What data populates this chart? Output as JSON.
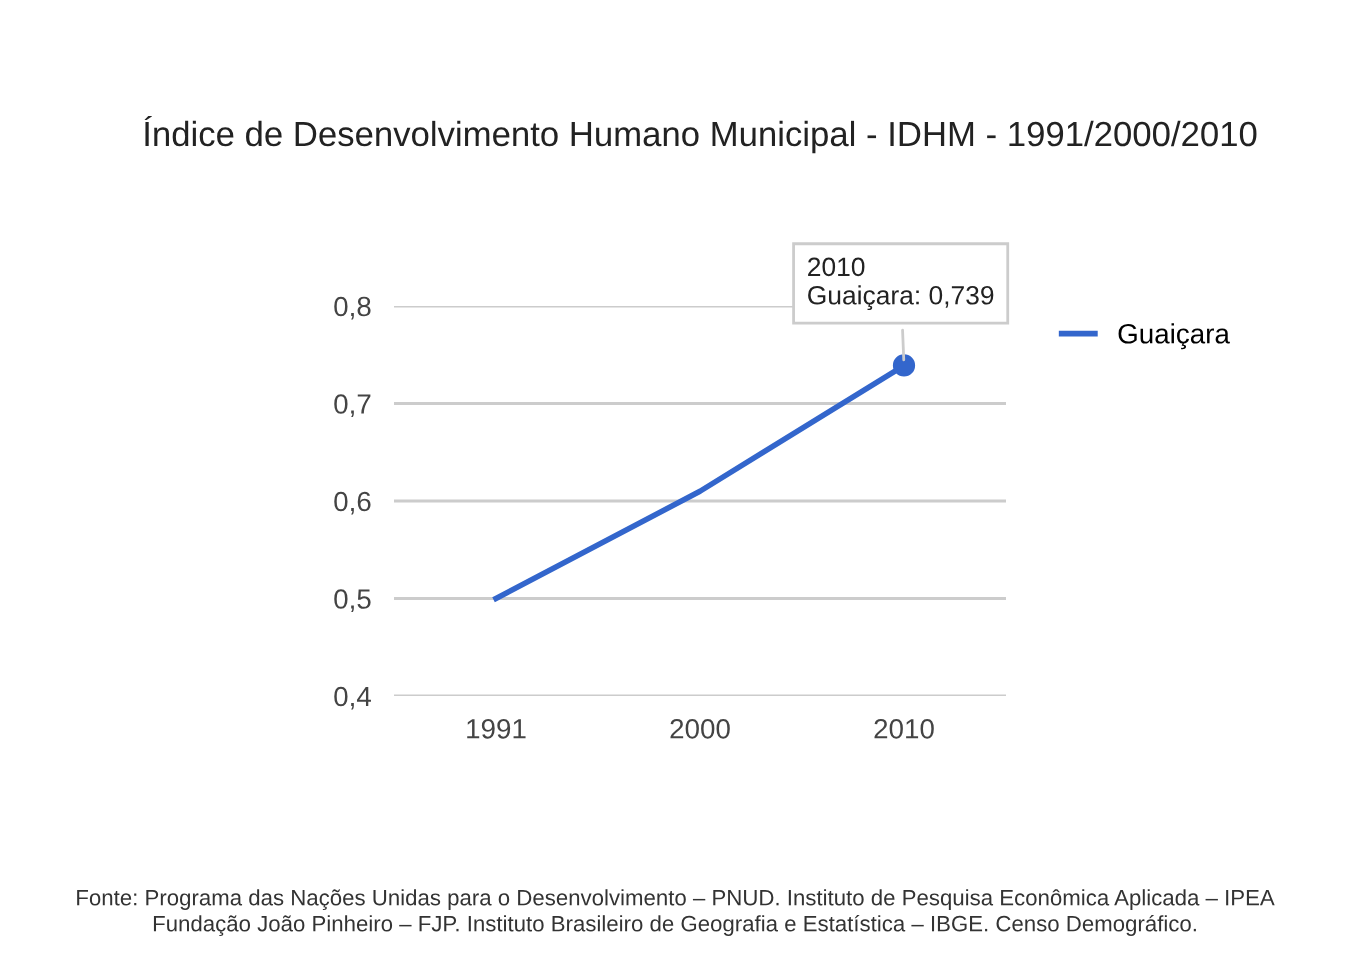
{
  "chart_data": {
    "type": "line",
    "title": "Índice de Desenvolvimento Humano Municipal - IDHM - 1991/2000/2010",
    "categories": [
      "1991",
      "2000",
      "2010"
    ],
    "series": [
      {
        "name": "Guaiçara",
        "color": "#3366cc",
        "values": [
          0.5,
          0.61,
          0.739
        ]
      }
    ],
    "ylim": [
      0.4,
      0.8
    ],
    "yticks": [
      {
        "value": 0.4,
        "label": "0,4"
      },
      {
        "value": 0.5,
        "label": "0,5"
      },
      {
        "value": 0.6,
        "label": "0,6"
      },
      {
        "value": 0.7,
        "label": "0,7"
      },
      {
        "value": 0.8,
        "label": "0,8"
      }
    ],
    "grid": "y",
    "legend": "right",
    "marker": "none",
    "line_style": "solid",
    "annotations": [
      {
        "text": "2010\nGuaiçara: 0,739",
        "x": "2010",
        "y": 0.739
      },
      "Fonte: Programa das Nações Unidas para o Desenvolvimento – PNUD. Instituto de Pesquisa Econômica Aplicada – IPEA\nFundação João Pinheiro – FJP. Instituto Brasileiro de Geografia e Estatística – IBGE. Censo Demográfico."
    ]
  }
}
